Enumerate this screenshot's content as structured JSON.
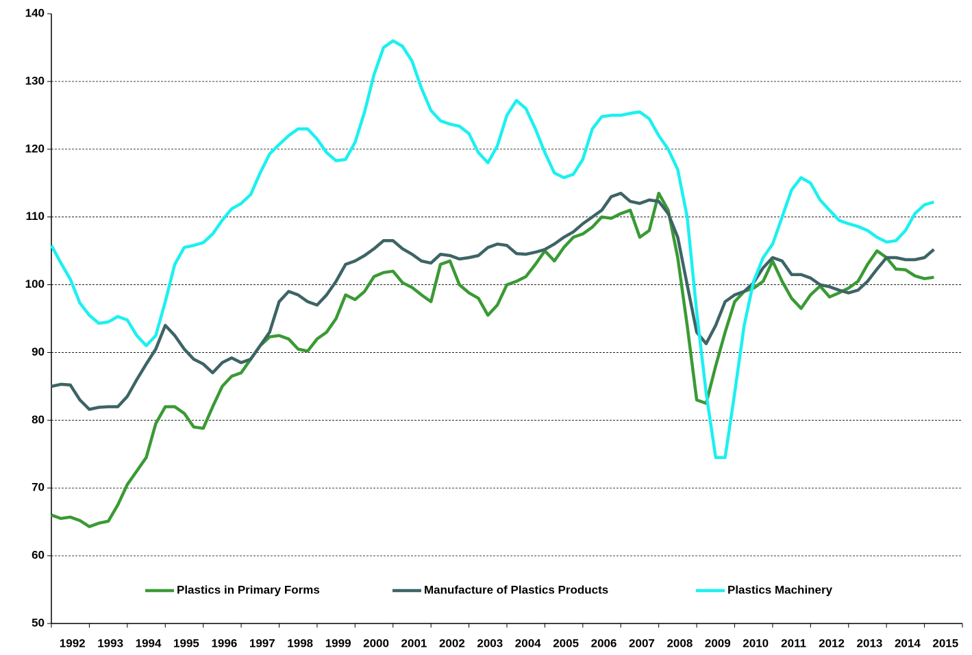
{
  "chart_data": {
    "type": "line",
    "categories": [
      1992,
      1993,
      1994,
      1995,
      1996,
      1997,
      1998,
      1999,
      2000,
      2001,
      2002,
      2003,
      2004,
      2005,
      2006,
      2007,
      2008,
      2009,
      2010,
      2011,
      2012,
      2013,
      2014,
      2015
    ],
    "x": [
      1992,
      1992.25,
      1992.5,
      1992.75,
      1993,
      1993.25,
      1993.5,
      1993.75,
      1994,
      1994.25,
      1994.5,
      1994.75,
      1995,
      1995.25,
      1995.5,
      1995.75,
      1996,
      1996.25,
      1996.5,
      1996.75,
      1997,
      1997.25,
      1997.5,
      1997.75,
      1998,
      1998.25,
      1998.5,
      1998.75,
      1999,
      1999.25,
      1999.5,
      1999.75,
      2000,
      2000.25,
      2000.5,
      2000.75,
      2001,
      2001.25,
      2001.5,
      2001.75,
      2002,
      2002.25,
      2002.5,
      2002.75,
      2003,
      2003.25,
      2003.5,
      2003.75,
      2004,
      2004.25,
      2004.5,
      2004.75,
      2005,
      2005.25,
      2005.5,
      2005.75,
      2006,
      2006.25,
      2006.5,
      2006.75,
      2007,
      2007.25,
      2007.5,
      2007.75,
      2008,
      2008.25,
      2008.5,
      2008.75,
      2009,
      2009.25,
      2009.5,
      2009.75,
      2010,
      2010.25,
      2010.5,
      2010.75,
      2011,
      2011.25,
      2011.5,
      2011.75,
      2012,
      2012.25,
      2012.5,
      2012.75,
      2013,
      2013.25,
      2013.5,
      2013.75,
      2014,
      2014.25,
      2014.5,
      2014.75,
      2015,
      2015.25
    ],
    "xlim": [
      1992,
      2016
    ],
    "ylim": [
      50,
      140
    ],
    "yticks": [
      50,
      60,
      70,
      80,
      90,
      100,
      110,
      120,
      130,
      140
    ],
    "grid": true,
    "legend": "bottom",
    "series": [
      {
        "name": "Plastics in Primary Forms",
        "color": "#3a9a34",
        "values": [
          66,
          65.5,
          65.7,
          65.2,
          64.3,
          64.8,
          65.1,
          67.5,
          70.5,
          72.5,
          74.5,
          79.5,
          82,
          82,
          81,
          79,
          78.8,
          82,
          85,
          86.5,
          87,
          89,
          91,
          92.3,
          92.5,
          92,
          90.5,
          90.2,
          92,
          93,
          95,
          98.5,
          97.8,
          99,
          101.2,
          101.8,
          102,
          100.3,
          99.6,
          98.5,
          97.5,
          103,
          103.5,
          100,
          98.8,
          98,
          95.5,
          97,
          100,
          100.5,
          101.2,
          103,
          105,
          103.5,
          105.5,
          107,
          107.5,
          108.5,
          110,
          109.8,
          110.5,
          111,
          107,
          108,
          113.5,
          111,
          104,
          94,
          83,
          82.5,
          88,
          93,
          97.5,
          99,
          99.5,
          100.5,
          103.5,
          100.5,
          98,
          96.5,
          98.5,
          99.8,
          98.2,
          98.8,
          99.5,
          100.5,
          103,
          105,
          104,
          102.3,
          102.2,
          101.3,
          100.9,
          101.1
        ]
      },
      {
        "name": "Manufacture of Plastics Products",
        "color": "#3e6465",
        "values": [
          85,
          85.3,
          85.2,
          83,
          81.6,
          81.9,
          82,
          82,
          83.5,
          86,
          88.3,
          90.5,
          94,
          92.5,
          90.5,
          89,
          88.3,
          87,
          88.5,
          89.2,
          88.5,
          89,
          91,
          93,
          97.5,
          99,
          98.5,
          97.5,
          97,
          98.5,
          100.5,
          103,
          103.5,
          104.3,
          105.3,
          106.5,
          106.5,
          105.3,
          104.5,
          103.5,
          103.2,
          104.5,
          104.3,
          103.8,
          104,
          104.3,
          105.5,
          106,
          105.8,
          104.6,
          104.5,
          104.8,
          105.2,
          106,
          107,
          107.8,
          109,
          110,
          111,
          113,
          113.5,
          112.3,
          112,
          112.5,
          112.3,
          110.5,
          107,
          100,
          93,
          91.3,
          94,
          97.5,
          98.5,
          99,
          100.3,
          102.5,
          104,
          103.5,
          101.5,
          101.5,
          101,
          100,
          99.7,
          99.2,
          98.8,
          99.2,
          100.5,
          102.3,
          104,
          104,
          103.7,
          103.7,
          104,
          105.2
        ]
      },
      {
        "name": "Plastics Machinery",
        "color": "#1cf0f0",
        "values": [
          105.8,
          103.2,
          100.8,
          97.3,
          95.5,
          94.3,
          94.5,
          95.3,
          94.8,
          92.5,
          91,
          92.5,
          97.5,
          103,
          105.5,
          105.8,
          106.2,
          107.5,
          109.5,
          111.2,
          112,
          113.3,
          116.5,
          119.3,
          120.7,
          122,
          123,
          123,
          121.5,
          119.5,
          118.3,
          118.5,
          121,
          125.5,
          131,
          135,
          136,
          135.2,
          133,
          129,
          125.7,
          124.2,
          123.7,
          123.4,
          122.3,
          119.5,
          118,
          120.5,
          125,
          127.2,
          126,
          123,
          119.5,
          116.5,
          115.8,
          116.3,
          118.5,
          123,
          124.8,
          125,
          125,
          125.3,
          125.5,
          124.5,
          122,
          120,
          117,
          110,
          96,
          84,
          74.5,
          74.5,
          84,
          94,
          100.5,
          104,
          106,
          110,
          114,
          115.8,
          115,
          112.5,
          111,
          109.5,
          109,
          108.6,
          108,
          107,
          106.3,
          106.5,
          108,
          110.5,
          111.8,
          112.2
        ]
      }
    ]
  }
}
